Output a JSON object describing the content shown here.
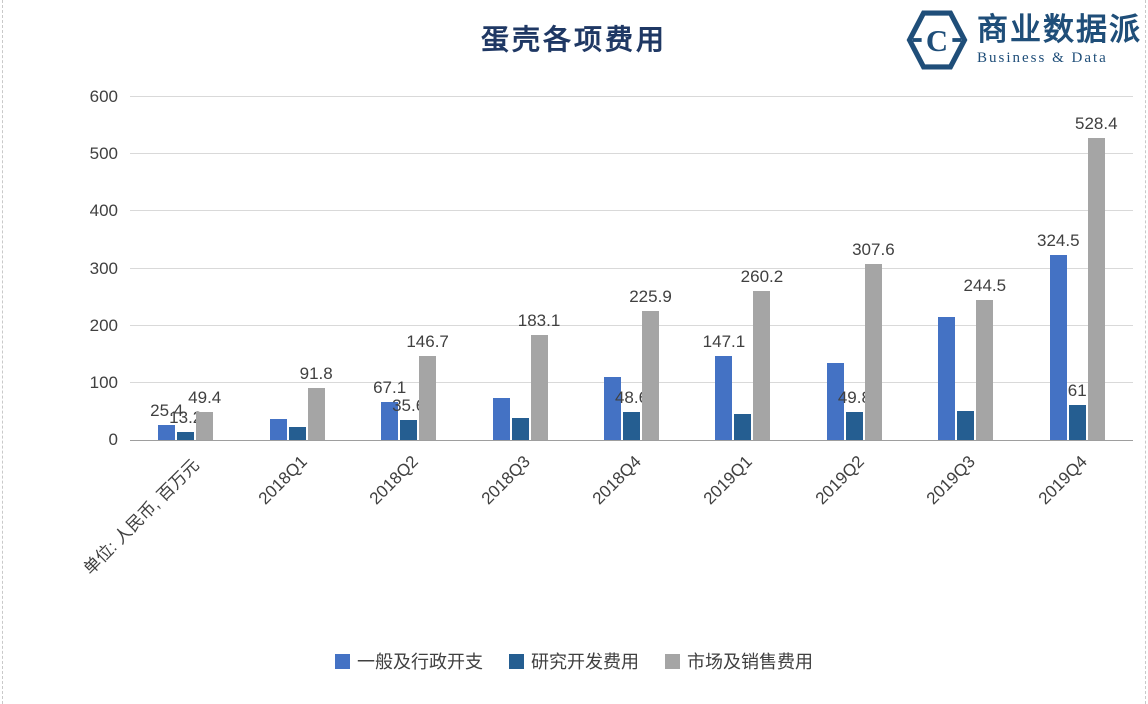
{
  "logo": {
    "letter": "C",
    "name_cn": "商业数据派",
    "name_en": "Business & Data",
    "color": "#1f4e79"
  },
  "chart_data": {
    "type": "bar",
    "title": "蛋壳各项费用",
    "unit_note": "单位: 人民币, 百万元",
    "categories": [
      "单位: 人民币, 百万元",
      "2018Q1",
      "2018Q2",
      "2018Q3",
      "2018Q4",
      "2019Q1",
      "2019Q2",
      "2019Q3",
      "2019Q4"
    ],
    "series": [
      {
        "name": "一般及行政开支",
        "color": "#4472c4",
        "values": [
          25.4,
          36,
          67.1,
          73,
          110,
          147.1,
          135,
          215,
          324.5
        ],
        "labels": [
          "25.4",
          "",
          "67.1",
          "",
          "",
          "147.1",
          "",
          "",
          "324.5"
        ]
      },
      {
        "name": "研究开发费用",
        "color": "#255e91",
        "values": [
          13.2,
          22,
          35.6,
          38,
          48.6,
          45,
          49.8,
          50,
          61
        ],
        "labels": [
          "13.2",
          "",
          "35.6",
          "",
          "48.6",
          "",
          "49.8",
          "",
          "61"
        ]
      },
      {
        "name": "市场及销售费用",
        "color": "#a5a5a5",
        "values": [
          49.4,
          91.8,
          146.7,
          183.1,
          225.9,
          260.2,
          307.6,
          244.5,
          528.4
        ],
        "labels": [
          "49.4",
          "91.8",
          "146.7",
          "183.1",
          "225.9",
          "260.2",
          "307.6",
          "244.5",
          "528.4"
        ]
      }
    ],
    "ylim": [
      0,
      600
    ],
    "yticks": [
      0,
      100,
      200,
      300,
      400,
      500,
      600
    ],
    "grid": true,
    "legend_position": "bottom",
    "text_color": "#404040",
    "grid_color": "#d9d9d9",
    "axis_color": "#9e9e9e"
  }
}
